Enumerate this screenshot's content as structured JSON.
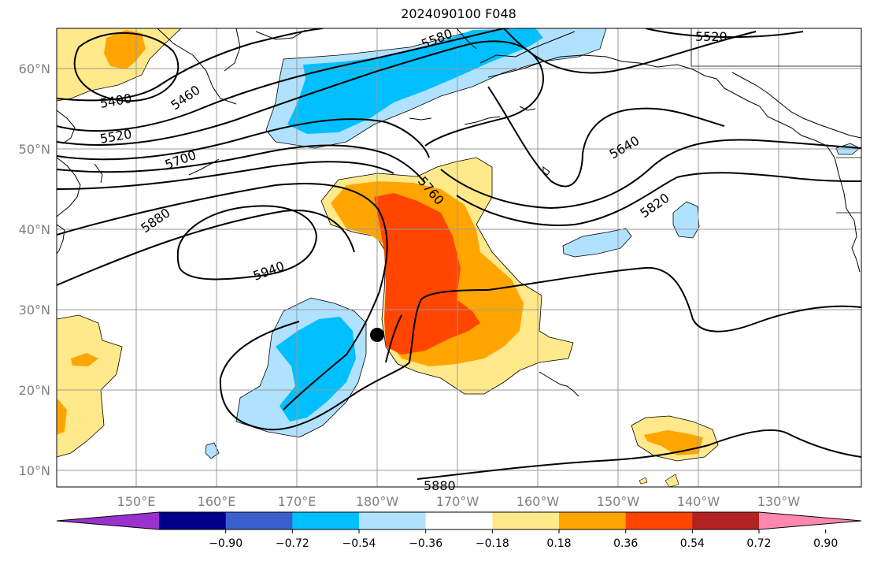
{
  "title": "2024090100 F048",
  "axes": {
    "lat_labels": [
      "60°N",
      "50°N",
      "40°N",
      "30°N",
      "20°N",
      "10°N"
    ],
    "lon_labels": [
      "150°E",
      "160°E",
      "170°E",
      "180°W",
      "170°W",
      "160°W",
      "150°W",
      "140°W",
      "130°W"
    ]
  },
  "contour_labels": [
    "5400",
    "5460",
    "5520",
    "5580",
    "5520",
    "5700",
    "5760",
    "5640",
    "5820",
    "5880",
    "5940",
    "5880"
  ],
  "colorbar": {
    "tick_labels": [
      "−0.90",
      "−0.72",
      "−0.54",
      "−0.36",
      "−0.18",
      "0.18",
      "0.36",
      "0.54",
      "0.72",
      "0.90"
    ],
    "colors": [
      "#9932cc",
      "#00008b",
      "#3a5fcd",
      "#00bfff",
      "#b0e2ff",
      "#ffffff",
      "#ffe98a",
      "#ffa500",
      "#ff4500",
      "#b22222",
      "#ff88b0"
    ]
  },
  "marker": {
    "label": "storm-position"
  }
}
